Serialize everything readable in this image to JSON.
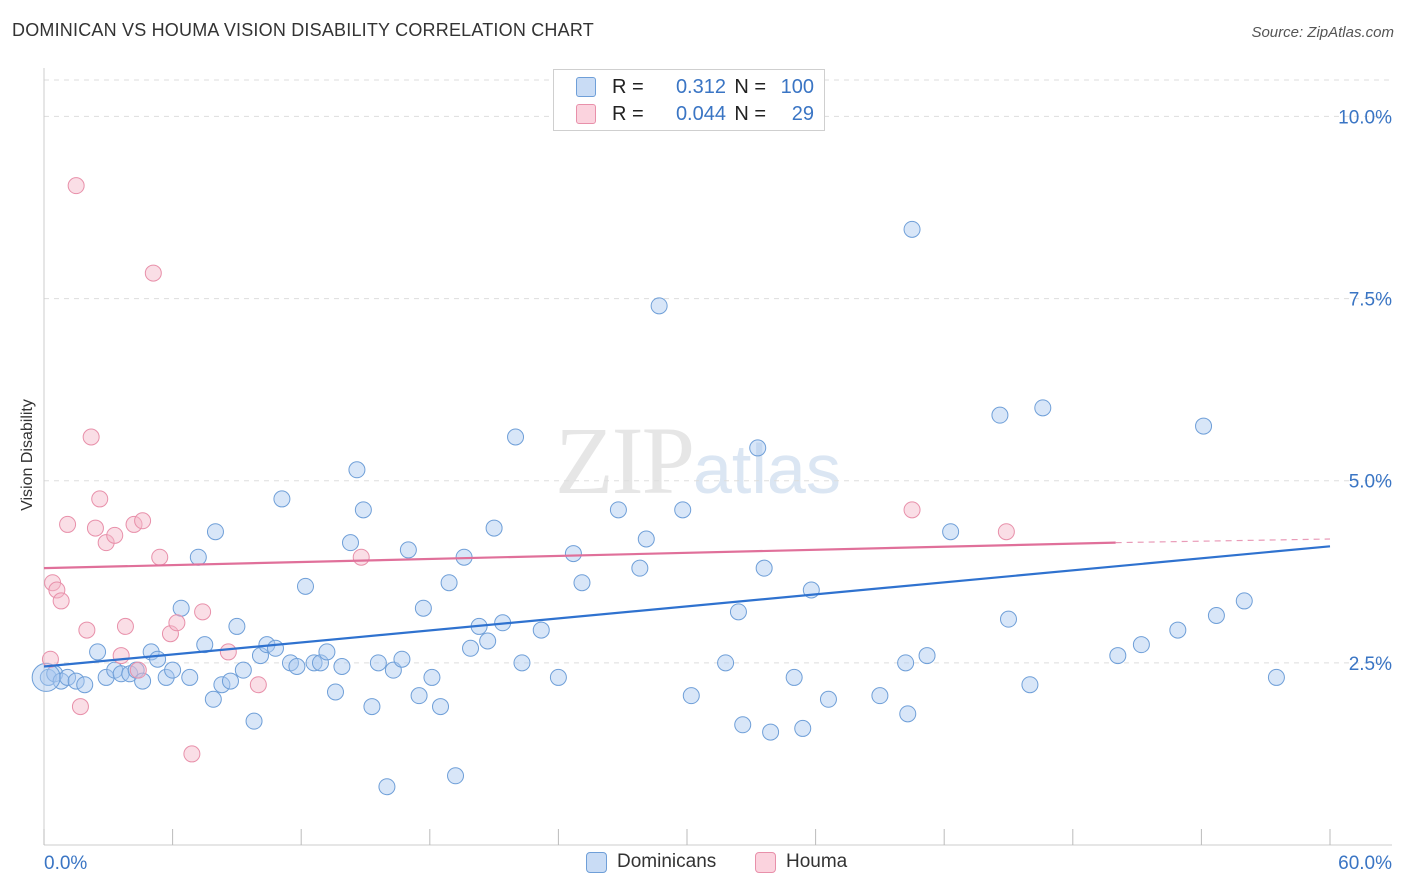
{
  "title": "DOMINICAN VS HOUMA VISION DISABILITY CORRELATION CHART",
  "source": "Source: ZipAtlas.com",
  "watermark": {
    "zip": "ZIP",
    "atlas": "atlas"
  },
  "legend": {
    "rows": [
      {
        "r_label": "R =",
        "r_value": "0.312",
        "n_label": "N =",
        "n_value": "100",
        "color": "#a9c8f0"
      },
      {
        "r_label": "R =",
        "r_value": "0.044",
        "n_label": "N =",
        "n_value": "29",
        "color": "#f5b6c8"
      }
    ]
  },
  "bottom_legend": [
    {
      "label": "Dominicans",
      "color": "#a9c8f0"
    },
    {
      "label": "Houma",
      "color": "#f5b6c8"
    }
  ],
  "colors": {
    "blue_fill": "#a9c8f0",
    "blue_stroke": "#6f9fd8",
    "blue_line": "#2f72cf",
    "pink_fill": "#f5b6c8",
    "pink_stroke": "#e890aa",
    "pink_line": "#e0709a",
    "tick_text": "#3a75c4",
    "grid": "#dddddd"
  },
  "chart_data": {
    "type": "scatter",
    "title": "DOMINICAN VS HOUMA VISION DISABILITY CORRELATION CHART",
    "xlabel": "",
    "ylabel": "Vision Disability",
    "xlim": [
      0,
      60
    ],
    "ylim": [
      0,
      10.5
    ],
    "x_tick_labels": [
      "0.0%",
      "60.0%"
    ],
    "y_ticks": [
      2.5,
      5.0,
      7.5,
      10.0
    ],
    "y_tick_labels": [
      "2.5%",
      "5.0%",
      "7.5%",
      "10.0%"
    ],
    "grid": true,
    "series": [
      {
        "name": "Dominicans",
        "r": 0.312,
        "n": 100,
        "trend": {
          "x": [
            0,
            60
          ],
          "y": [
            2.45,
            4.1
          ]
        },
        "points": [
          [
            0.2,
            2.3
          ],
          [
            0.5,
            2.35
          ],
          [
            0.8,
            2.25
          ],
          [
            1.1,
            2.3
          ],
          [
            1.5,
            2.25
          ],
          [
            1.9,
            2.2
          ],
          [
            2.5,
            2.65
          ],
          [
            2.9,
            2.3
          ],
          [
            3.3,
            2.4
          ],
          [
            3.6,
            2.35
          ],
          [
            4.0,
            2.35
          ],
          [
            4.3,
            2.4
          ],
          [
            4.6,
            2.25
          ],
          [
            5.0,
            2.65
          ],
          [
            5.3,
            2.55
          ],
          [
            5.7,
            2.3
          ],
          [
            6.0,
            2.4
          ],
          [
            6.4,
            3.25
          ],
          [
            6.8,
            2.3
          ],
          [
            7.2,
            3.95
          ],
          [
            7.5,
            2.75
          ],
          [
            7.9,
            2.0
          ],
          [
            8.0,
            4.3
          ],
          [
            8.3,
            2.2
          ],
          [
            8.7,
            2.25
          ],
          [
            9.0,
            3.0
          ],
          [
            9.3,
            2.4
          ],
          [
            9.8,
            1.7
          ],
          [
            10.1,
            2.6
          ],
          [
            10.4,
            2.75
          ],
          [
            10.8,
            2.7
          ],
          [
            11.1,
            4.75
          ],
          [
            11.5,
            2.5
          ],
          [
            11.8,
            2.45
          ],
          [
            12.2,
            3.55
          ],
          [
            12.6,
            2.5
          ],
          [
            12.9,
            2.5
          ],
          [
            13.2,
            2.65
          ],
          [
            13.6,
            2.1
          ],
          [
            13.9,
            2.45
          ],
          [
            14.3,
            4.15
          ],
          [
            14.6,
            5.15
          ],
          [
            14.9,
            4.6
          ],
          [
            15.3,
            1.9
          ],
          [
            15.6,
            2.5
          ],
          [
            16.0,
            0.8
          ],
          [
            16.3,
            2.4
          ],
          [
            16.7,
            2.55
          ],
          [
            17.0,
            4.05
          ],
          [
            17.5,
            2.05
          ],
          [
            17.7,
            3.25
          ],
          [
            18.1,
            2.3
          ],
          [
            18.5,
            1.9
          ],
          [
            18.9,
            3.6
          ],
          [
            19.2,
            0.95
          ],
          [
            19.6,
            3.95
          ],
          [
            19.9,
            2.7
          ],
          [
            20.3,
            3.0
          ],
          [
            20.7,
            2.8
          ],
          [
            21.0,
            4.35
          ],
          [
            21.4,
            3.05
          ],
          [
            22.0,
            5.6
          ],
          [
            22.3,
            2.5
          ],
          [
            23.2,
            2.95
          ],
          [
            24.0,
            2.3
          ],
          [
            24.7,
            4.0
          ],
          [
            25.1,
            3.6
          ],
          [
            26.8,
            4.6
          ],
          [
            27.8,
            3.8
          ],
          [
            28.1,
            4.2
          ],
          [
            28.7,
            7.4
          ],
          [
            29.8,
            4.6
          ],
          [
            30.2,
            2.05
          ],
          [
            31.8,
            2.5
          ],
          [
            32.4,
            3.2
          ],
          [
            32.6,
            1.65
          ],
          [
            33.3,
            5.45
          ],
          [
            33.6,
            3.8
          ],
          [
            33.9,
            1.55
          ],
          [
            35.0,
            2.3
          ],
          [
            35.4,
            1.6
          ],
          [
            35.8,
            3.5
          ],
          [
            36.6,
            2.0
          ],
          [
            39.0,
            2.05
          ],
          [
            40.2,
            2.5
          ],
          [
            40.3,
            1.8
          ],
          [
            40.5,
            8.45
          ],
          [
            41.2,
            2.6
          ],
          [
            42.3,
            4.3
          ],
          [
            44.6,
            5.9
          ],
          [
            45.0,
            3.1
          ],
          [
            46.0,
            2.2
          ],
          [
            46.6,
            6.0
          ],
          [
            50.1,
            2.6
          ],
          [
            51.2,
            2.75
          ],
          [
            52.9,
            2.95
          ],
          [
            54.1,
            5.75
          ],
          [
            54.7,
            3.15
          ],
          [
            56.0,
            3.35
          ],
          [
            57.5,
            2.3
          ]
        ]
      },
      {
        "name": "Houma",
        "r": 0.044,
        "n": 29,
        "trend": {
          "x": [
            0,
            50
          ],
          "y": [
            3.8,
            4.15
          ]
        },
        "trend_dashed_extension": {
          "x": [
            50,
            60
          ],
          "y": [
            4.15,
            4.2
          ]
        },
        "points": [
          [
            0.4,
            3.6
          ],
          [
            0.6,
            3.5
          ],
          [
            0.8,
            3.35
          ],
          [
            1.1,
            4.4
          ],
          [
            1.5,
            9.05
          ],
          [
            1.7,
            1.9
          ],
          [
            2.0,
            2.95
          ],
          [
            2.2,
            5.6
          ],
          [
            2.4,
            4.35
          ],
          [
            2.6,
            4.75
          ],
          [
            2.9,
            4.15
          ],
          [
            3.3,
            4.25
          ],
          [
            3.6,
            2.6
          ],
          [
            3.8,
            3.0
          ],
          [
            4.2,
            4.4
          ],
          [
            4.4,
            2.4
          ],
          [
            4.6,
            4.45
          ],
          [
            5.1,
            7.85
          ],
          [
            5.4,
            3.95
          ],
          [
            5.9,
            2.9
          ],
          [
            6.2,
            3.05
          ],
          [
            6.9,
            1.25
          ],
          [
            7.4,
            3.2
          ],
          [
            8.6,
            2.65
          ],
          [
            10.0,
            2.2
          ],
          [
            14.8,
            3.95
          ],
          [
            40.5,
            4.6
          ],
          [
            44.9,
            4.3
          ],
          [
            0.3,
            2.55
          ]
        ]
      }
    ]
  }
}
